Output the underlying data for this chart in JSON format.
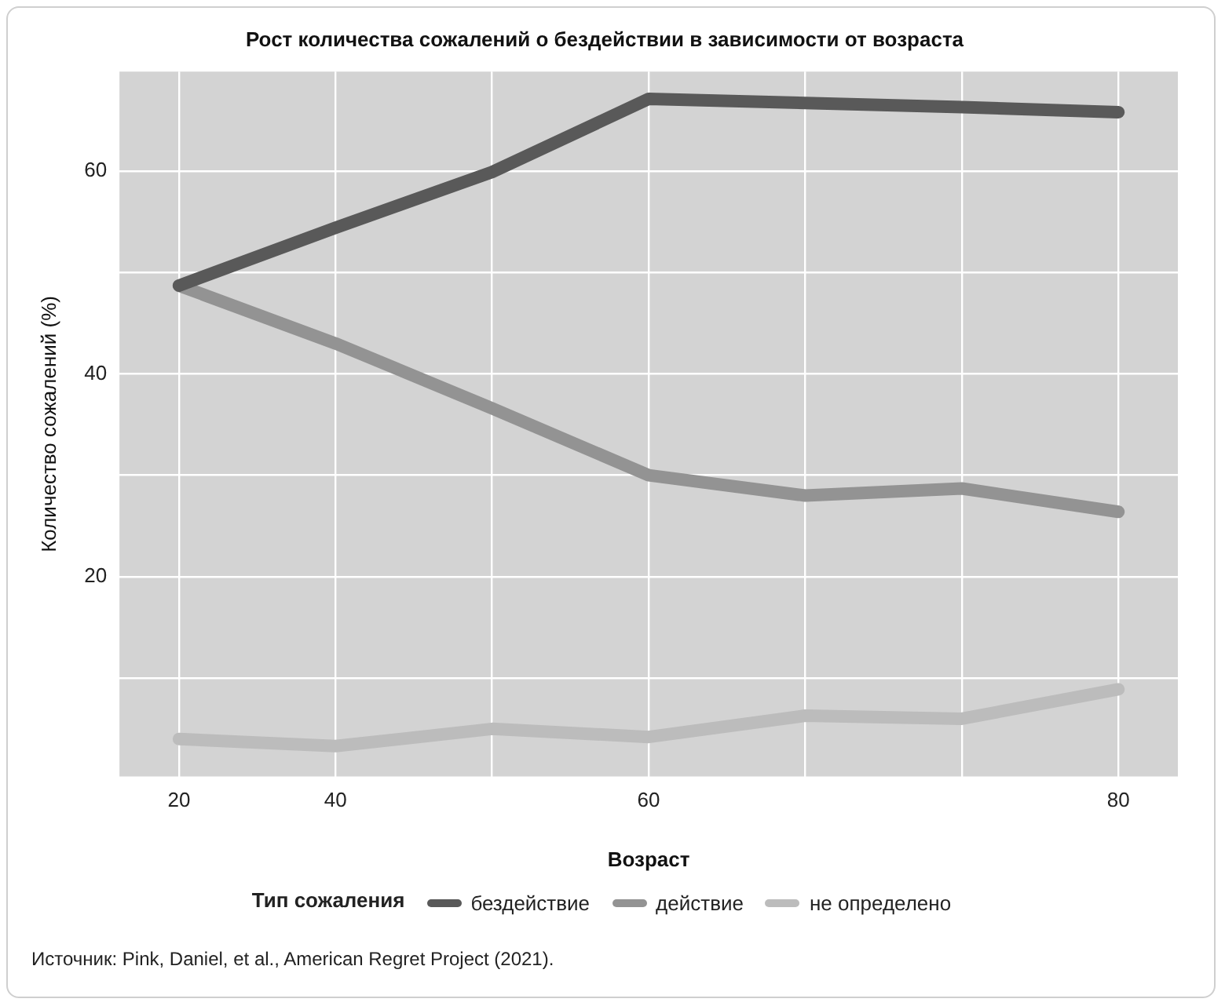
{
  "chart_data": {
    "type": "line",
    "title": "Рост количества сожалений о бездействии в зависимости от возраста",
    "xlabel": "Возраст",
    "ylabel": "Количество сожалений (%)",
    "legend_title": "Тип сожаления",
    "categories": [
      "20",
      "40",
      null,
      "60",
      null,
      null,
      "80"
    ],
    "series": [
      {
        "name": "бездействие",
        "color": "#595959",
        "values": [
          48.7,
          54.4,
          59.9,
          67.1,
          66.7,
          66.3,
          65.8
        ]
      },
      {
        "name": "действие",
        "color": "#939393",
        "values": [
          48.7,
          43.0,
          36.6,
          30.0,
          28.0,
          28.7,
          26.4
        ]
      },
      {
        "name": "не определено",
        "color": "#bcbcbc",
        "values": [
          4.0,
          3.3,
          5.0,
          4.2,
          6.3,
          6.0,
          8.9
        ]
      }
    ],
    "ylim": [
      0.3,
      69.8
    ],
    "yticks": [
      {
        "value": 10,
        "label": null
      },
      20,
      {
        "value": 30,
        "label": null
      },
      40,
      {
        "value": 50,
        "label": null
      },
      60
    ],
    "grid": true,
    "legend": "bottom",
    "marker": "none",
    "line_style": "solid",
    "annotations": [
      "Источник: Pink, Daniel, et al., American Regret Project (2021)."
    ]
  }
}
